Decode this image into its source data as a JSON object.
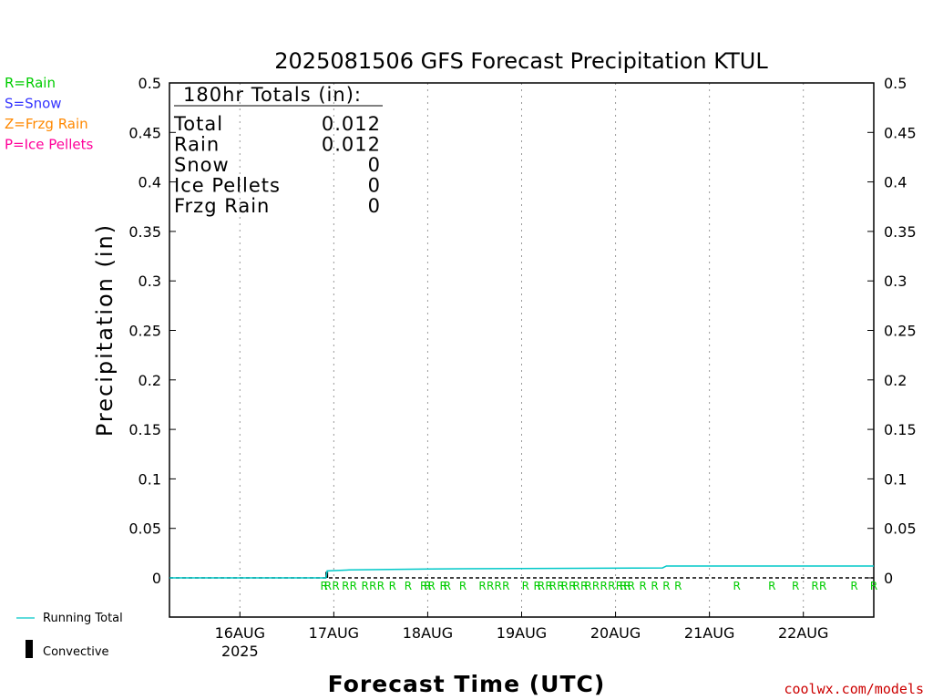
{
  "chart_data": {
    "type": "line",
    "title": "2025081506 GFS Forecast Precipitation KTUL",
    "xlabel": "Forecast Time (UTC)",
    "ylabel": "Precipitation (in)",
    "ylim": [
      0,
      0.5
    ],
    "y_ticks": [
      "0",
      "0.05",
      "0.1",
      "0.15",
      "0.2",
      "0.25",
      "0.3",
      "0.35",
      "0.4",
      "0.45",
      "0.5"
    ],
    "x_ticks": [
      {
        "label": "16AUG",
        "sublabel": "2025",
        "hour": 18
      },
      {
        "label": "17AUG",
        "sublabel": "",
        "hour": 42
      },
      {
        "label": "18AUG",
        "sublabel": "",
        "hour": 66
      },
      {
        "label": "19AUG",
        "sublabel": "",
        "hour": 90
      },
      {
        "label": "20AUG",
        "sublabel": "",
        "hour": 114
      },
      {
        "label": "21AUG",
        "sublabel": "",
        "hour": 138
      },
      {
        "label": "22AUG",
        "sublabel": "",
        "hour": 162
      }
    ],
    "xlim_hours": [
      0,
      180
    ],
    "grid": "vertical dotted",
    "series": [
      {
        "name": "Running Total",
        "color": "#00c8c8",
        "points": [
          [
            0,
            0
          ],
          [
            40,
            0
          ],
          [
            40.3,
            0.007
          ],
          [
            46,
            0.008
          ],
          [
            67,
            0.009
          ],
          [
            126,
            0.01
          ],
          [
            127,
            0.012
          ],
          [
            180,
            0.012
          ]
        ]
      }
    ],
    "convective": [
      [
        40.2,
        0.006
      ]
    ],
    "precip_type_markers": {
      "letter": "R",
      "color": "#00cc00",
      "hours": [
        39.5,
        40.5,
        42.5,
        45,
        47,
        50,
        52,
        54,
        57,
        61,
        65,
        66,
        67,
        70,
        71,
        75,
        80,
        82,
        84,
        86,
        91,
        94,
        95,
        97,
        98,
        100,
        101,
        103,
        104,
        106,
        107,
        109,
        111,
        113,
        115,
        116,
        117,
        118,
        121,
        124,
        127,
        130,
        145,
        154,
        160,
        165,
        167,
        175,
        180
      ]
    }
  },
  "totals_box": {
    "header": "180hr Totals (in):",
    "rows": [
      {
        "label": "Total",
        "value": "0.012"
      },
      {
        "label": "Rain",
        "value": "0.012"
      },
      {
        "label": "Snow",
        "value": "0"
      },
      {
        "label": "Ice Pellets",
        "value": "0"
      },
      {
        "label": "Frzg Rain",
        "value": "0"
      }
    ]
  },
  "type_legend": [
    {
      "text": "R=Rain",
      "color": "#00cc00"
    },
    {
      "text": "S=Snow",
      "color": "#3333ff"
    },
    {
      "text": "Z=Frzg Rain",
      "color": "#ff8800"
    },
    {
      "text": "P=Ice Pellets",
      "color": "#ff0099"
    }
  ],
  "series_legend": {
    "running_total": "Running Total",
    "convective": "Convective"
  },
  "credit": {
    "text": "coolwx.com/models",
    "color": "#cc0000"
  }
}
